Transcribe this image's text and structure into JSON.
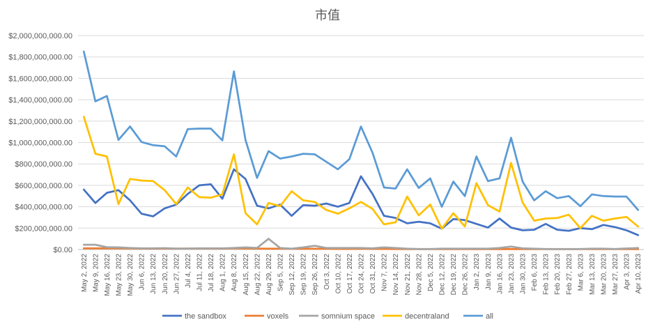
{
  "chart_data": {
    "type": "line",
    "title": "市值",
    "xlabel": "",
    "ylabel": "",
    "ylim": [
      0,
      2000000000
    ],
    "y_ticks": [
      0,
      200000000,
      400000000,
      600000000,
      800000000,
      1000000000,
      1200000000,
      1400000000,
      1600000000,
      1800000000,
      2000000000
    ],
    "y_tick_labels": [
      "$0.00",
      "$200,000,000.00",
      "$400,000,000.00",
      "$600,000,000.00",
      "$800,000,000.00",
      "$1,000,000,000.00",
      "$1,200,000,000.00",
      "$1,400,000,000.00",
      "$1,600,000,000.00",
      "$1,800,000,000.00",
      "$2,000,000,000.00"
    ],
    "grid": true,
    "legend_position": "bottom",
    "x": [
      "May 2, 2022",
      "May 9, 2022",
      "May 16, 2022",
      "May 23, 2022",
      "May 30, 2022",
      "Jun 6, 2022",
      "Jun 13, 2022",
      "Jun 20, 2022",
      "Jun 27, 2022",
      "Jul 4, 2022",
      "Jul 11, 2022",
      "Jul 18, 2022",
      "Aug 1, 2022",
      "Aug 8, 2022",
      "Aug 15, 2022",
      "Aug 22, 2022",
      "Aug 29, 2022",
      "Sep 5, 2022",
      "Sep 12, 2022",
      "Sep 19, 2022",
      "Sep 26, 2022",
      "Oct 3, 2022",
      "Oct 10, 2022",
      "Oct 17, 2022",
      "Oct 24, 2022",
      "Oct 31, 2022",
      "Nov 7, 2022",
      "Nov 14, 2022",
      "Nov 21, 2022",
      "Nov 28, 2022",
      "Dec 5, 2022",
      "Dec 12, 2022",
      "Dec 19, 2022",
      "Dec 26, 2022",
      "Jan 2, 2023",
      "Jan 9, 2023",
      "Jan 16, 2023",
      "Jan 23, 2023",
      "Jan 30, 2023",
      "Feb 6, 2023",
      "Feb 13, 2023",
      "Feb 20, 2023",
      "Feb 27, 2023",
      "Mar 6, 2023",
      "Mar 13, 2023",
      "Mar 20, 2023",
      "Mar 27, 2023",
      "Apr 3, 2023",
      "Apr 10, 2023"
    ],
    "series": [
      {
        "name": "the sandbox",
        "color": "#4472C4",
        "values": [
          560000000,
          435000000,
          530000000,
          555000000,
          460000000,
          335000000,
          310000000,
          385000000,
          420000000,
          520000000,
          600000000,
          610000000,
          475000000,
          750000000,
          660000000,
          410000000,
          385000000,
          420000000,
          315000000,
          415000000,
          410000000,
          430000000,
          400000000,
          435000000,
          685000000,
          520000000,
          315000000,
          295000000,
          245000000,
          260000000,
          245000000,
          195000000,
          285000000,
          275000000,
          240000000,
          205000000,
          290000000,
          205000000,
          180000000,
          185000000,
          240000000,
          185000000,
          175000000,
          200000000,
          190000000,
          230000000,
          210000000,
          180000000,
          135000000
        ]
      },
      {
        "name": "voxels",
        "color": "#ED7D31",
        "values": [
          12000000,
          12000000,
          11000000,
          11000000,
          10000000,
          9000000,
          9000000,
          9000000,
          8000000,
          9000000,
          10000000,
          10000000,
          9000000,
          11000000,
          10000000,
          9000000,
          8000000,
          8000000,
          7000000,
          7000000,
          7000000,
          7000000,
          6000000,
          6000000,
          7000000,
          6000000,
          6000000,
          5000000,
          4000000,
          4000000,
          4000000,
          4000000,
          4000000,
          4000000,
          4000000,
          4000000,
          4000000,
          5000000,
          4000000,
          4000000,
          4000000,
          4000000,
          4000000,
          4000000,
          4000000,
          4000000,
          4000000,
          4000000,
          4000000
        ]
      },
      {
        "name": "somnium space",
        "color": "#A5A5A5",
        "values": [
          45000000,
          45000000,
          22000000,
          20000000,
          15000000,
          12000000,
          12000000,
          13000000,
          9000000,
          9000000,
          12000000,
          12000000,
          12000000,
          15000000,
          20000000,
          15000000,
          100000000,
          15000000,
          8000000,
          20000000,
          35000000,
          15000000,
          15000000,
          15000000,
          15000000,
          12000000,
          20000000,
          15000000,
          8000000,
          5000000,
          5000000,
          8000000,
          8000000,
          8000000,
          8000000,
          8000000,
          15000000,
          28000000,
          12000000,
          8000000,
          5000000,
          5000000,
          5000000,
          5000000,
          8000000,
          8000000,
          5000000,
          10000000,
          15000000
        ]
      },
      {
        "name": "decentraland",
        "color": "#FFC000",
        "values": [
          1240000000,
          895000000,
          870000000,
          425000000,
          660000000,
          645000000,
          640000000,
          555000000,
          425000000,
          580000000,
          490000000,
          485000000,
          515000000,
          890000000,
          340000000,
          235000000,
          435000000,
          405000000,
          545000000,
          460000000,
          445000000,
          370000000,
          335000000,
          385000000,
          445000000,
          380000000,
          235000000,
          255000000,
          495000000,
          320000000,
          420000000,
          195000000,
          340000000,
          215000000,
          620000000,
          415000000,
          355000000,
          810000000,
          440000000,
          270000000,
          290000000,
          295000000,
          325000000,
          200000000,
          315000000,
          270000000,
          290000000,
          305000000,
          215000000
        ]
      },
      {
        "name": "all",
        "color": "#5B9BD5",
        "values": [
          1850000000,
          1385000000,
          1435000000,
          1025000000,
          1150000000,
          1005000000,
          975000000,
          965000000,
          870000000,
          1125000000,
          1130000000,
          1130000000,
          1020000000,
          1665000000,
          1025000000,
          670000000,
          920000000,
          850000000,
          870000000,
          895000000,
          890000000,
          820000000,
          750000000,
          845000000,
          1150000000,
          905000000,
          580000000,
          570000000,
          750000000,
          575000000,
          665000000,
          400000000,
          635000000,
          500000000,
          870000000,
          640000000,
          665000000,
          1045000000,
          635000000,
          460000000,
          545000000,
          480000000,
          500000000,
          405000000,
          515000000,
          500000000,
          495000000,
          495000000,
          370000000
        ]
      }
    ]
  }
}
